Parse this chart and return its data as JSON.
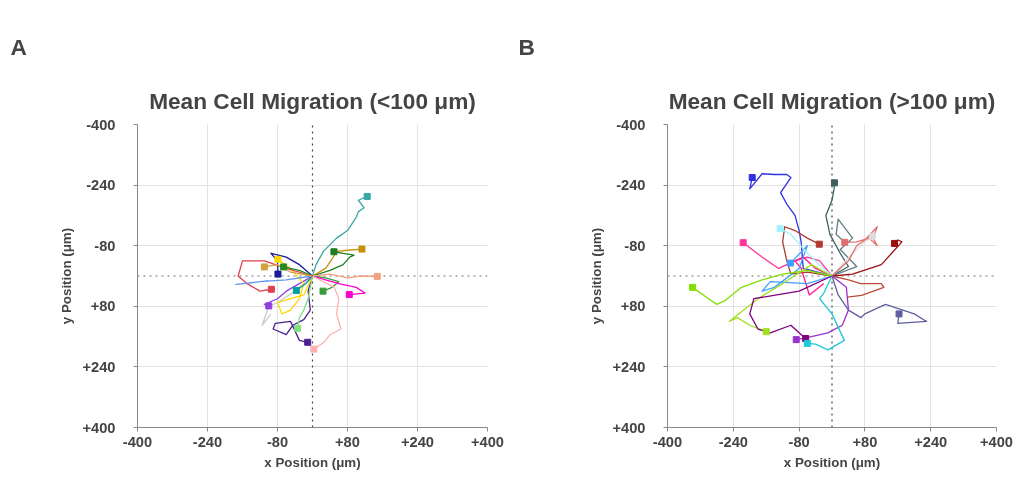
{
  "chart_data": [
    {
      "type": "line",
      "title": "Mean Cell Migration (<100 μm)",
      "xlabel": "x Position (μm)",
      "ylabel": "y Position (μm)",
      "annotations": [
        "A"
      ],
      "xlim": [
        -400,
        400
      ],
      "ylim": [
        400,
        -400
      ],
      "xticks": [
        -400,
        -240,
        -80,
        {
          "value": 80,
          "label": "+80"
        },
        {
          "value": 240,
          "label": "+240"
        },
        {
          "value": 400,
          "label": "+400"
        }
      ],
      "yticks": [
        -400,
        -240,
        -80,
        {
          "value": 80,
          "label": "+80"
        },
        {
          "value": 240,
          "label": "+240"
        },
        {
          "value": 400,
          "label": "+400"
        }
      ],
      "grid": true,
      "line_style": "solid",
      "ref_lines": [
        {
          "axis": "x",
          "value": 0,
          "color": "#444444",
          "line_style": "dotted"
        },
        {
          "axis": "y",
          "value": 0,
          "color": "#707070",
          "line_style": "dotted"
        }
      ],
      "series": [
        {
          "type": "scatter",
          "marker": "square",
          "x": [
            125,
            113,
            49,
            24,
            148,
            84,
            3,
            -11,
            -34,
            -100,
            -79,
            -37,
            -79,
            -94,
            -66,
            -110
          ],
          "values": [
            -210,
            -71,
            -64,
            40,
            1,
            49,
            193,
            175,
            138,
            79,
            -44,
            38,
            -5,
            35,
            -24,
            -24
          ],
          "colors": [
            "#3aa6a6",
            "#c8900a",
            "#1e7d1e",
            "#3a9a3a",
            "#f4a080",
            "#ff00cc",
            "#ffb0b0",
            "#4b1f8f",
            "#80e080",
            "#9040e0",
            "#ffd700",
            "#00a0a0",
            "#1a1a9a",
            "#e04050",
            "#228b22",
            "#d2a040"
          ]
        },
        {
          "color": "#3aa6a6",
          "x": [
            0,
            8,
            25,
            55,
            80,
            100,
            105,
            118,
            105,
            125
          ],
          "values": [
            0,
            -30,
            -65,
            -100,
            -120,
            -155,
            -170,
            -180,
            -200,
            -210
          ]
        },
        {
          "color": "#c8900a",
          "x": [
            0,
            30,
            45,
            55,
            80,
            113
          ],
          "values": [
            0,
            -20,
            -45,
            -65,
            -68,
            -71
          ]
        },
        {
          "color": "#1e7d1e",
          "x": [
            0,
            40,
            70,
            85,
            95,
            70,
            49
          ],
          "values": [
            0,
            -15,
            -30,
            -50,
            -55,
            -60,
            -64
          ]
        },
        {
          "color": "#3a9a3a",
          "x": [
            0,
            30,
            60,
            45,
            24
          ],
          "values": [
            0,
            5,
            15,
            30,
            40
          ]
        },
        {
          "color": "#f4a080",
          "x": [
            0,
            40,
            80,
            110,
            148
          ],
          "values": [
            0,
            -5,
            5,
            0,
            1
          ]
        },
        {
          "color": "#ff00cc",
          "x": [
            0,
            30,
            60,
            100,
            120,
            84
          ],
          "values": [
            0,
            10,
            20,
            30,
            45,
            49
          ]
        },
        {
          "color": "#ffb0b0",
          "x": [
            0,
            50,
            60,
            55,
            65,
            40,
            30,
            20,
            3
          ],
          "values": [
            0,
            30,
            60,
            100,
            140,
            155,
            170,
            180,
            193
          ]
        },
        {
          "color": "#4b1f8f",
          "x": [
            0,
            -10,
            -5,
            -20,
            -45,
            -60,
            -90,
            -85,
            -50,
            -30,
            -11
          ],
          "values": [
            0,
            40,
            90,
            115,
            130,
            155,
            140,
            125,
            120,
            170,
            175
          ]
        },
        {
          "color": "#80e080",
          "x": [
            0,
            -10,
            -20,
            -30,
            -34
          ],
          "values": [
            0,
            60,
            90,
            110,
            138
          ]
        },
        {
          "color": "#cccccc",
          "x": [
            0,
            -40,
            -80,
            -100,
            -115,
            -95
          ],
          "values": [
            0,
            40,
            70,
            80,
            130,
            100
          ]
        },
        {
          "color": "#9040e0",
          "x": [
            0,
            -30,
            -60,
            -80,
            -110,
            -100
          ],
          "values": [
            0,
            20,
            40,
            60,
            75,
            79
          ]
        },
        {
          "color": "#ffd700",
          "x": [
            0,
            -20,
            -50,
            -80,
            -70,
            -50,
            -30,
            -20,
            -50,
            -79
          ],
          "values": [
            0,
            50,
            60,
            70,
            100,
            90,
            60,
            20,
            -20,
            -44
          ]
        },
        {
          "color": "#00a0a0",
          "x": [
            0,
            -15,
            -37
          ],
          "values": [
            0,
            20,
            38
          ]
        },
        {
          "color": "#1a1a9a",
          "x": [
            0,
            -30,
            -60,
            -95,
            -80,
            -79
          ],
          "values": [
            0,
            -30,
            -50,
            -60,
            -40,
            -5
          ]
        },
        {
          "color": "#e04050",
          "x": [
            0,
            -60,
            -110,
            -160,
            -170,
            -150,
            -120,
            -94
          ],
          "values": [
            0,
            -20,
            -40,
            -40,
            0,
            20,
            40,
            35
          ]
        },
        {
          "color": "#6495ed",
          "x": [
            0,
            -60,
            -120,
            -175,
            -140,
            -100
          ],
          "values": [
            0,
            10,
            15,
            22,
            18,
            12
          ]
        },
        {
          "color": "#228b22",
          "x": [
            0,
            -30,
            -66
          ],
          "values": [
            0,
            -15,
            -24
          ]
        },
        {
          "color": "#d2a040",
          "x": [
            0,
            -50,
            -80,
            -110
          ],
          "values": [
            0,
            -10,
            -30,
            -24
          ]
        }
      ]
    },
    {
      "type": "line",
      "title": "Mean Cell Migration (>100 μm)",
      "xlabel": "x Position (μm)",
      "ylabel": "y Position (μm)",
      "annotations": [
        "B"
      ],
      "xlim": [
        -400,
        400
      ],
      "ylim": [
        400,
        -400
      ],
      "xticks": [
        -400,
        -240,
        -80,
        {
          "value": 80,
          "label": "+80"
        },
        {
          "value": 240,
          "label": "+240"
        },
        {
          "value": 400,
          "label": "+400"
        }
      ],
      "yticks": [
        -400,
        -240,
        -80,
        {
          "value": 80,
          "label": "+80"
        },
        {
          "value": 240,
          "label": "+240"
        },
        {
          "value": 400,
          "label": "+400"
        }
      ],
      "grid": true,
      "line_style": "solid",
      "ref_lines": [
        {
          "axis": "x",
          "value": 0,
          "color": "#444444",
          "line_style": "dotted"
        },
        {
          "axis": "y",
          "value": 0,
          "color": "#707070",
          "line_style": "dotted"
        }
      ],
      "series": [
        {
          "type": "scatter",
          "marker": "square",
          "x": [
            -194,
            6,
            98,
            31,
            152,
            -31,
            -216,
            -101,
            -126,
            -339,
            -160,
            -87,
            -64,
            -60,
            163
          ],
          "values": [
            -260,
            -246,
            -105,
            -89,
            -86,
            -84,
            -88,
            -34,
            -125,
            30,
            147,
            168,
            165,
            178,
            100
          ],
          "colors": [
            "#3030e0",
            "#3f5f5f",
            "#dddddd",
            "#e07070",
            "#a01010",
            "#b03a30",
            "#ff3399",
            "#40a0ff",
            "#a0f0ff",
            "#80e000",
            "#a0e020",
            "#9932cc",
            "#800080",
            "#20c8d8",
            "#6060a0"
          ]
        },
        {
          "color": "#3030e0",
          "x": [
            0,
            -70,
            -75,
            -80,
            -90,
            -110,
            -125,
            -100,
            -110,
            -140,
            -170,
            -200,
            -194
          ],
          "values": [
            0,
            -20,
            -90,
            -120,
            -160,
            -190,
            -220,
            -260,
            -268,
            -268,
            -270,
            -230,
            -260
          ]
        },
        {
          "color": "#3f5f5f",
          "x": [
            0,
            40,
            20,
            10,
            -5,
            -15,
            0,
            5,
            6
          ],
          "values": [
            0,
            -25,
            -60,
            -80,
            -110,
            -160,
            -200,
            -230,
            -246
          ]
        },
        {
          "color": "#5f7f7f",
          "x": [
            0,
            60,
            20,
            50,
            15,
            10,
            30
          ],
          "values": [
            0,
            -25,
            -70,
            -100,
            -150,
            -110,
            -90
          ]
        },
        {
          "color": "#dddddd",
          "x": [
            0,
            50,
            80,
            98
          ],
          "values": [
            0,
            -60,
            -90,
            -105
          ]
        },
        {
          "color": "#e07070",
          "x": [
            0,
            40,
            60,
            80,
            110,
            100,
            110,
            90,
            60,
            31
          ],
          "values": [
            0,
            -40,
            -80,
            -95,
            -130,
            -100,
            -80,
            -100,
            -90,
            -89
          ]
        },
        {
          "color": "#a01010",
          "x": [
            0,
            50,
            120,
            145,
            170,
            160,
            152
          ],
          "values": [
            0,
            -5,
            -30,
            -60,
            -90,
            -95,
            -86
          ]
        },
        {
          "color": "#c04a3a",
          "x": [
            0,
            40,
            70,
            120,
            126,
            72,
            37
          ],
          "values": [
            0,
            10,
            20,
            20,
            30,
            51,
            56
          ]
        },
        {
          "color": "#b03a30",
          "x": [
            0,
            -60,
            -100,
            -110,
            -120,
            -115,
            -90,
            -60,
            -31
          ],
          "values": [
            0,
            -10,
            -5,
            -40,
            -90,
            -130,
            -120,
            -100,
            -84
          ]
        },
        {
          "color": "#ff3399",
          "x": [
            0,
            -30,
            -60,
            -90,
            -130,
            -170,
            -216
          ],
          "values": [
            0,
            -40,
            -50,
            -40,
            -20,
            -50,
            -88
          ]
        },
        {
          "color": "#ff1493",
          "x": [
            0,
            -40,
            -70,
            -90,
            -75,
            -55,
            -20
          ],
          "values": [
            0,
            -20,
            -50,
            -40,
            -20,
            50,
            20
          ]
        },
        {
          "color": "#40a0ff",
          "x": [
            0,
            -60,
            -150,
            -170,
            -140,
            -80,
            -60,
            -101
          ],
          "values": [
            0,
            20,
            15,
            40,
            30,
            -20,
            -80,
            -34
          ]
        },
        {
          "color": "#a0f0ff",
          "x": [
            0,
            -60,
            -100,
            -126
          ],
          "values": [
            0,
            -60,
            -110,
            -125
          ]
        },
        {
          "color": "#80e000",
          "x": [
            0,
            -60,
            -120,
            -170,
            -220,
            -260,
            -280,
            -300,
            -339
          ],
          "values": [
            0,
            -15,
            -5,
            10,
            30,
            65,
            75,
            60,
            30
          ]
        },
        {
          "color": "#a0e020",
          "x": [
            0,
            -50,
            -120,
            -180,
            -250,
            -230,
            -200,
            -160
          ],
          "values": [
            0,
            -30,
            20,
            60,
            120,
            110,
            130,
            147
          ]
        },
        {
          "color": "#9932cc",
          "x": [
            0,
            35,
            40,
            25,
            -10,
            -50,
            -87
          ],
          "values": [
            0,
            30,
            90,
            130,
            150,
            160,
            168
          ]
        },
        {
          "color": "#800080",
          "x": [
            0,
            -80,
            -190,
            -200,
            -180,
            -150,
            -100,
            -80,
            -64
          ],
          "values": [
            0,
            40,
            60,
            100,
            140,
            150,
            130,
            150,
            165
          ]
        },
        {
          "color": "#20c8d8",
          "x": [
            0,
            -20,
            -30,
            0,
            30,
            -10,
            -40,
            -60
          ],
          "values": [
            0,
            45,
            60,
            100,
            170,
            195,
            180,
            178
          ]
        },
        {
          "color": "#6060a0",
          "x": [
            0,
            15,
            40,
            70,
            80,
            130,
            200,
            230,
            160,
            163
          ],
          "values": [
            0,
            50,
            90,
            110,
            100,
            75,
            100,
            120,
            125,
            100
          ]
        }
      ]
    }
  ]
}
